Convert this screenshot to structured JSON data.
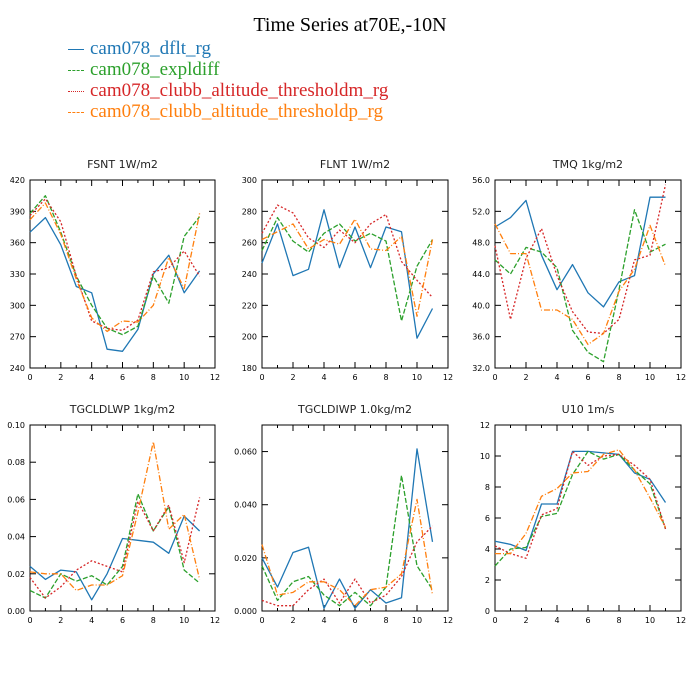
{
  "title": "Time Series at70E,-10N",
  "legend": [
    {
      "label": "cam078_dflt_rg",
      "color": "#1f77b4",
      "dash": "solid"
    },
    {
      "label": "cam078_expldiff",
      "color": "#2ca02c",
      "dash": "dashed"
    },
    {
      "label": "cam078_clubb_altitude_thresholdm_rg",
      "color": "#d62728",
      "dash": "dotted"
    },
    {
      "label": "cam078_clubb_altitude_thresholdp_rg",
      "color": "#ff7f0e",
      "dash": "dashdot"
    }
  ],
  "chart_data": [
    {
      "type": "line",
      "title": "FSNT  1W/m2",
      "x": [
        0,
        1,
        2,
        3,
        4,
        5,
        6,
        7,
        8,
        9,
        10,
        11
      ],
      "xlim": [
        0,
        12
      ],
      "xticks": [
        "0",
        "2",
        "4",
        "6",
        "8",
        "10",
        "12"
      ],
      "ylim": [
        240,
        420
      ],
      "yticks": [
        "240",
        "270",
        "300",
        "330",
        "360",
        "390",
        "420"
      ],
      "series": [
        {
          "name": "cam078_dflt_rg",
          "values": [
            370,
            384,
            358,
            318,
            312,
            258,
            256,
            277,
            330,
            348,
            312,
            333
          ]
        },
        {
          "name": "cam078_expldiff",
          "values": [
            388,
            405,
            370,
            328,
            300,
            278,
            272,
            280,
            328,
            302,
            366,
            385
          ]
        },
        {
          "name": "cam078_clubb_altitude_thresholdm_rg",
          "values": [
            386,
            402,
            380,
            328,
            285,
            278,
            276,
            286,
            332,
            336,
            352,
            328
          ]
        },
        {
          "name": "cam078_clubb_altitude_thresholdp_rg",
          "values": [
            382,
            398,
            368,
            325,
            288,
            275,
            285,
            284,
            300,
            346,
            316,
            388
          ]
        }
      ]
    },
    {
      "type": "line",
      "title": "FLNT  1W/m2",
      "x": [
        0,
        1,
        2,
        3,
        4,
        5,
        6,
        7,
        8,
        9,
        10,
        11
      ],
      "xlim": [
        0,
        12
      ],
      "xticks": [
        "0",
        "2",
        "4",
        "6",
        "8",
        "10",
        "12"
      ],
      "ylim": [
        180,
        300
      ],
      "yticks": [
        "180",
        "200",
        "220",
        "240",
        "260",
        "280",
        "300"
      ],
      "series": [
        {
          "name": "cam078_dflt_rg",
          "values": [
            247,
            272,
            239,
            243,
            281,
            244,
            270,
            244,
            270,
            267,
            199,
            218
          ]
        },
        {
          "name": "cam078_expldiff",
          "values": [
            255,
            276,
            261,
            254,
            266,
            272,
            261,
            266,
            261,
            210,
            245,
            262
          ]
        },
        {
          "name": "cam078_clubb_altitude_thresholdm_rg",
          "values": [
            266,
            284,
            279,
            263,
            257,
            268,
            260,
            272,
            278,
            248,
            236,
            225
          ]
        },
        {
          "name": "cam078_clubb_altitude_thresholdp_rg",
          "values": [
            262,
            267,
            272,
            256,
            262,
            259,
            275,
            256,
            255,
            264,
            213,
            262
          ]
        }
      ]
    },
    {
      "type": "line",
      "title": "TMQ  1kg/m2",
      "x": [
        0,
        1,
        2,
        3,
        4,
        5,
        6,
        7,
        8,
        9,
        10,
        11
      ],
      "xlim": [
        0,
        12
      ],
      "xticks": [
        "0",
        "2",
        "4",
        "6",
        "8",
        "10",
        "12"
      ],
      "ylim": [
        32,
        56
      ],
      "yticks": [
        "32.0",
        "36.0",
        "40.0",
        "44.0",
        "48.0",
        "52.0",
        "56.0"
      ],
      "series": [
        {
          "name": "cam078_dflt_rg",
          "values": [
            50,
            51.2,
            53.4,
            46.4,
            42,
            45.2,
            41.6,
            39.8,
            43,
            43.8,
            53.8,
            53.8
          ]
        },
        {
          "name": "cam078_expldiff",
          "values": [
            45.8,
            44,
            47.4,
            46.8,
            44.8,
            36.8,
            34,
            32.8,
            42,
            52.2,
            46.8,
            47.8
          ]
        },
        {
          "name": "cam078_clubb_altitude_thresholdm_rg",
          "values": [
            47.6,
            38.2,
            46,
            49.8,
            43.8,
            39.2,
            36.6,
            36.4,
            38.2,
            45.8,
            46.4,
            55.4
          ]
        },
        {
          "name": "cam078_clubb_altitude_thresholdp_rg",
          "values": [
            50.4,
            46.6,
            46.6,
            39.4,
            39.4,
            38.2,
            35,
            36.4,
            41.8,
            44.6,
            50.2,
            45
          ]
        }
      ]
    },
    {
      "type": "line",
      "title": "TGCLDLWP  1kg/m2",
      "x": [
        0,
        1,
        2,
        3,
        4,
        5,
        6,
        7,
        8,
        9,
        10,
        11
      ],
      "xlim": [
        0,
        12
      ],
      "xticks": [
        "0",
        "2",
        "4",
        "6",
        "8",
        "10",
        "12"
      ],
      "ylim": [
        0,
        0.1
      ],
      "yticks": [
        "0.00",
        "0.02",
        "0.04",
        "0.06",
        "0.08",
        "0.10"
      ],
      "series": [
        {
          "name": "cam078_dflt_rg",
          "values": [
            0.024,
            0.017,
            0.022,
            0.021,
            0.006,
            0.02,
            0.039,
            0.038,
            0.037,
            0.031,
            0.051,
            0.043
          ]
        },
        {
          "name": "cam078_expldiff",
          "values": [
            0.011,
            0.007,
            0.02,
            0.016,
            0.019,
            0.014,
            0.024,
            0.063,
            0.043,
            0.056,
            0.022,
            0.015
          ]
        },
        {
          "name": "cam078_clubb_altitude_thresholdm_rg",
          "values": [
            0.018,
            0.007,
            0.013,
            0.022,
            0.027,
            0.024,
            0.021,
            0.059,
            0.043,
            0.057,
            0.026,
            0.061
          ]
        },
        {
          "name": "cam078_clubb_altitude_thresholdp_rg",
          "values": [
            0.021,
            0.02,
            0.02,
            0.011,
            0.014,
            0.014,
            0.019,
            0.053,
            0.091,
            0.044,
            0.052,
            0.017
          ]
        }
      ]
    },
    {
      "type": "line",
      "title": "TGCLDIWP  1.0kg/m2",
      "x": [
        0,
        1,
        2,
        3,
        4,
        5,
        6,
        7,
        8,
        9,
        10,
        11
      ],
      "xlim": [
        0,
        12
      ],
      "xticks": [
        "0",
        "2",
        "4",
        "6",
        "8",
        "10",
        "12"
      ],
      "ylim": [
        0,
        0.07
      ],
      "yticks": [
        "0.000",
        "0.020",
        "0.040",
        "0.060"
      ],
      "series": [
        {
          "name": "cam078_dflt_rg",
          "values": [
            0.02,
            0.009,
            0.022,
            0.024,
            0.001,
            0.012,
            0.001,
            0.008,
            0.003,
            0.005,
            0.061,
            0.026
          ]
        },
        {
          "name": "cam078_expldiff",
          "values": [
            0.017,
            0.004,
            0.011,
            0.013,
            0.006,
            0.002,
            0.007,
            0.002,
            0.009,
            0.051,
            0.017,
            0.008
          ]
        },
        {
          "name": "cam078_clubb_altitude_thresholdm_rg",
          "values": [
            0.004,
            0.002,
            0.002,
            0.008,
            0.012,
            0.003,
            0.012,
            0.003,
            0.006,
            0.013,
            0.026,
            0.032
          ]
        },
        {
          "name": "cam078_clubb_altitude_thresholdp_rg",
          "values": [
            0.025,
            0.006,
            0.007,
            0.011,
            0.011,
            0.008,
            0.002,
            0.008,
            0.009,
            0.014,
            0.042,
            0.006
          ]
        }
      ]
    },
    {
      "type": "line",
      "title": "U10  1m/s",
      "x": [
        0,
        1,
        2,
        3,
        4,
        5,
        6,
        7,
        8,
        9,
        10,
        11
      ],
      "xlim": [
        0,
        12
      ],
      "xticks": [
        "0",
        "2",
        "4",
        "6",
        "8",
        "10",
        "12"
      ],
      "ylim": [
        0,
        12
      ],
      "yticks": [
        "0",
        "2",
        "4",
        "6",
        "8",
        "10",
        "12"
      ],
      "series": [
        {
          "name": "cam078_dflt_rg",
          "values": [
            4.5,
            4.3,
            3.9,
            6.9,
            6.9,
            10.3,
            10.3,
            10.2,
            10.1,
            8.9,
            8.5,
            7.0
          ]
        },
        {
          "name": "cam078_expldiff",
          "values": [
            2.9,
            4.0,
            4.1,
            6.1,
            6.3,
            8.8,
            10.3,
            9.8,
            10.1,
            9.1,
            8.2,
            5.3
          ]
        },
        {
          "name": "cam078_clubb_altitude_thresholdm_rg",
          "values": [
            4.2,
            3.7,
            3.4,
            6.2,
            6.6,
            10.3,
            9.4,
            10.0,
            10.1,
            9.4,
            8.5,
            5.3
          ]
        },
        {
          "name": "cam078_clubb_altitude_thresholdp_rg",
          "values": [
            3.7,
            3.7,
            5.0,
            7.4,
            7.9,
            8.9,
            9.0,
            10.1,
            10.4,
            9.1,
            7.3,
            5.4
          ]
        }
      ]
    }
  ]
}
